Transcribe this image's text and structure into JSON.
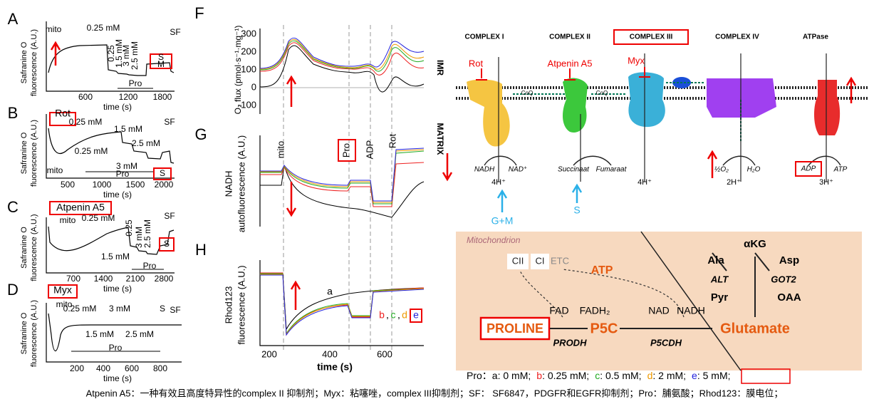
{
  "panels": {
    "A": {
      "label": "A",
      "ylabel": [
        "Safranine O",
        "fluorescence (A.U.)"
      ],
      "xlabel": "time (s)",
      "xticks": [
        600,
        1200,
        1800
      ],
      "notes": [
        "mito",
        "0.25 mM",
        "0.25",
        "1.5 mM",
        "3 mM",
        "2.5 mM",
        "S",
        "M",
        "SF",
        "Pro"
      ]
    },
    "B": {
      "label": "B",
      "inhibitor": "Rot",
      "ylabel": [
        "Safranine O",
        "fluorescence (A.U.)"
      ],
      "xlabel": "time (s)",
      "xticks": [
        500,
        1000,
        1500,
        2000
      ],
      "notes": [
        "0.25 mM",
        "1.5 mM",
        "0.25 mM",
        "2.5 mM",
        "SF",
        "mito",
        "3 mM",
        "Pro",
        "S"
      ]
    },
    "C": {
      "label": "C",
      "inhibitor": "Atpenin A5",
      "ylabel": [
        "Safranine O",
        "fluorescence (A.U.)"
      ],
      "xlabel": "time (s)",
      "xticks": [
        700,
        1400,
        2100,
        2800
      ],
      "notes": [
        "mito",
        "0.25 mM",
        "SF",
        "0.25",
        "3 mM",
        "2.5 mM",
        "S",
        "1.5 mM",
        "Pro"
      ]
    },
    "D": {
      "label": "D",
      "inhibitor": "Myx",
      "ylabel": [
        "Safranine O",
        "fluorescence (A.U.)"
      ],
      "xlabel": "time (s)",
      "xticks": [
        200,
        400,
        600,
        800
      ],
      "notes": [
        "mito",
        "0.25 mM",
        "3 mM",
        "S",
        "SF",
        "1.5 mM",
        "2.5 mM",
        "Pro"
      ]
    },
    "F": {
      "label": "F",
      "ylabel": "O₂ flux (pmol·s⁻¹·mg⁻¹)",
      "yticks": [
        300,
        200,
        100,
        0,
        -100
      ]
    },
    "G": {
      "label": "G",
      "ylabel": [
        "NADH",
        "autofluorescence (A.U.)"
      ],
      "notes": [
        "mito",
        "Pro",
        "ADP",
        "Rot"
      ]
    },
    "H": {
      "label": "H",
      "ylabel": [
        "Rhod123",
        "fluorescence (A.U.)"
      ],
      "xlabel": "time (s)",
      "xticks": [
        200,
        400,
        600
      ],
      "curve_a": "a",
      "curves": [
        "b",
        "c",
        "d",
        "e"
      ],
      "sep": ","
    }
  },
  "scheme": {
    "complexes": [
      "COMPLEX I",
      "COMPLEX II",
      "COMPLEX III",
      "COMPLEX IV",
      "ATPase"
    ],
    "compartments": [
      "IMR",
      "MATRIX"
    ],
    "inhibitors": [
      "Rot",
      "Atpenin A5",
      "Myx"
    ],
    "coq": "CoQ",
    "substrates": [
      "NADH",
      "NAD⁺",
      "Succinaat",
      "Fumaraat",
      "½O₂",
      "H₂O",
      "ADP",
      "ATP"
    ],
    "protons": [
      "4H⁺",
      "4H⁺",
      "2H⁺",
      "3H⁺"
    ],
    "inputs": [
      "G+M",
      "S"
    ]
  },
  "pathway": {
    "compartment": "Mitochondrion",
    "etc": [
      "CII",
      "CI",
      "ETC"
    ],
    "atp": "ATP",
    "akg": "αKG",
    "ala": "Ala",
    "asp": "Asp",
    "alt": "ALT",
    "got2": "GOT2",
    "pyr": "Pyr",
    "oaa": "OAA",
    "cofactors": [
      "FAD",
      "FADH₂",
      "NAD",
      "NADH"
    ],
    "proline": "PROLINE",
    "prodh": "PRODH",
    "p5c": "P5C",
    "p5cdh": "P5CDH",
    "glutamate": "Glutamate"
  },
  "caption": {
    "prefix": "Pro：",
    "items": [
      {
        "key": "a",
        "text": ": 0 mM;"
      },
      {
        "key": "b",
        "text": ": 0.25 mM;"
      },
      {
        "key": "c",
        "text": ": 0.5 mM;"
      },
      {
        "key": "d",
        "text": ": 2 mM;"
      },
      {
        "key": "e",
        "text": ": 5 mM;"
      }
    ],
    "note": "Atpenin A5：一种有效且高度特异性的complex II 抑制剂；Myx：粘噻唑，complex III抑制剂；SF： SF6847，PDGFR和EGFR抑制剂；Pro：脯氨酸；Rhod123：膜电位；"
  }
}
